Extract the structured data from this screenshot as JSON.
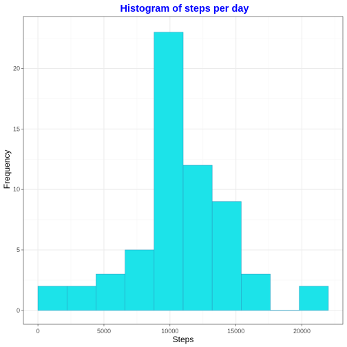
{
  "chart_data": {
    "type": "bar",
    "title": "Histogram of steps per day",
    "xlabel": "Steps",
    "ylabel": "Frequency",
    "xlim": [
      -1100,
      23100
    ],
    "ylim": [
      -1.15,
      24.3
    ],
    "x_ticks": [
      0,
      5000,
      10000,
      15000,
      20000
    ],
    "x_tick_labels": [
      "0",
      "5000",
      "10000",
      "15000",
      "20000"
    ],
    "y_ticks": [
      0,
      5,
      10,
      15,
      20
    ],
    "y_tick_labels": [
      "0",
      "5",
      "10",
      "15",
      "20"
    ],
    "bins": [
      {
        "x0": 0,
        "x1": 2200,
        "count": 2
      },
      {
        "x0": 2200,
        "x1": 4400,
        "count": 2
      },
      {
        "x0": 4400,
        "x1": 6600,
        "count": 3
      },
      {
        "x0": 6600,
        "x1": 8800,
        "count": 5
      },
      {
        "x0": 8800,
        "x1": 11000,
        "count": 23
      },
      {
        "x0": 11000,
        "x1": 13200,
        "count": 12
      },
      {
        "x0": 13200,
        "x1": 15400,
        "count": 9
      },
      {
        "x0": 15400,
        "x1": 17600,
        "count": 3
      },
      {
        "x0": 17600,
        "x1": 19800,
        "count": 0
      },
      {
        "x0": 19800,
        "x1": 22000,
        "count": 2
      }
    ],
    "grid": true,
    "colors": {
      "bar_fill": "#1ce3e9",
      "bar_stroke": "#2a9fc2",
      "title": "#0000ff",
      "grid_major": "#ebebeb",
      "grid_minor": "#f5f5f5",
      "panel_border": "#333333"
    }
  }
}
